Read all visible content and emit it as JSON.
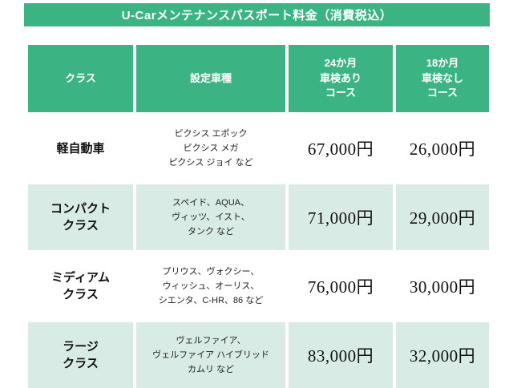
{
  "title": "U-Carメンテナンスパスポート料金（消費税込）",
  "colors": {
    "accent": "#3cb383",
    "band": "#d8ebe4",
    "ink": "#111111"
  },
  "table": {
    "headers": {
      "class": "クラス",
      "models": "設定車種",
      "course24": [
        "24か月",
        "車検あり",
        "コース"
      ],
      "course18": [
        "18か月",
        "車検なし",
        "コース"
      ]
    },
    "rows": [
      {
        "class_lines": [
          "軽自動車"
        ],
        "models": [
          "ピクシス エポック",
          "ピクシス メガ",
          "ピクシス ジョイ など"
        ],
        "price24": "67,000円",
        "price18": "26,000円"
      },
      {
        "class_lines": [
          "コンパクト",
          "クラス"
        ],
        "models": [
          "スペイド、AQUA、",
          "ヴィッツ、イスト、",
          "タンク など"
        ],
        "price24": "71,000円",
        "price18": "29,000円"
      },
      {
        "class_lines": [
          "ミディアム",
          "クラス"
        ],
        "models": [
          "プリウス、ヴォクシー、",
          "ウィッシュ、オーリス、",
          "シエンタ、C-HR、86 など"
        ],
        "price24": "76,000円",
        "price18": "30,000円"
      },
      {
        "class_lines": [
          "ラージ",
          "クラス"
        ],
        "models": [
          "ヴェルファイア、",
          "ヴェルファイア ハイブリッド",
          "カムリ など"
        ],
        "price24": "83,000円",
        "price18": "32,000円"
      }
    ]
  }
}
